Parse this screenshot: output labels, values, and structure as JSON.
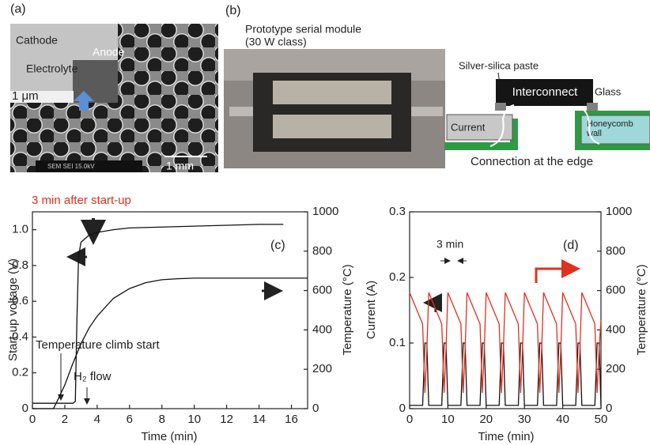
{
  "figure_a": {
    "label": "(a)",
    "cathode": "Cathode",
    "anode": "Anode",
    "electrolyte": "Electrolyte",
    "scale_inset": "1 μm",
    "scale_main": "1 mm",
    "sem_caption": "SEM SEI 15.0kV"
  },
  "figure_b": {
    "label": "(b)",
    "title_line1": "Prototype serial module",
    "title_line2": "(30 W class)",
    "paste": "Silver-silica paste",
    "interconnect": "Interconnect",
    "glass": "Glass",
    "current": "Current",
    "honeycomb_line1": "Honeycomb",
    "honeycomb_line2": "wall",
    "caption": "Connection at the edge"
  },
  "chart_data": [
    {
      "type": "line",
      "panel_label": "(c)",
      "xlabel": "Time (min)",
      "ylabel": "Start-up voltage (V)",
      "y2label": "Temperature (°C)",
      "annotations": [
        "3 min after start-up",
        "Temperature climb start",
        "H₂ flow"
      ],
      "xlim": [
        0,
        17
      ],
      "xticks": [
        0,
        2,
        4,
        6,
        8,
        10,
        12,
        14,
        16
      ],
      "ylim": [
        0,
        1.1
      ],
      "yticks": [
        0,
        0.2,
        0.4,
        0.6,
        0.8,
        {
          "value": 1,
          "label": "1.0"
        }
      ],
      "y2lim": [
        0,
        1000
      ],
      "y2ticks": [
        0,
        200,
        400,
        600,
        800,
        1000
      ],
      "series": [
        {
          "color": "#111111",
          "axis": "y",
          "x": [
            0,
            2.5,
            2.65,
            2.75,
            2.85,
            3,
            3.5,
            4,
            5,
            6,
            8,
            10,
            12,
            14,
            15.5
          ],
          "values": [
            0.03,
            0.03,
            0.04,
            0.5,
            0.85,
            0.93,
            0.97,
            0.985,
            1.0,
            1.01,
            1.015,
            1.02,
            1.025,
            1.03,
            1.03
          ]
        },
        {
          "color": "#111111",
          "axis": "y2",
          "x": [
            0,
            1.3,
            1.6,
            2,
            2.5,
            3,
            3.5,
            4,
            5,
            6,
            7,
            8,
            9,
            10,
            12,
            14,
            16,
            17
          ],
          "values": [
            0,
            0,
            50,
            120,
            230,
            330,
            410,
            470,
            560,
            610,
            640,
            655,
            660,
            663,
            663,
            663,
            663,
            663
          ]
        }
      ]
    },
    {
      "type": "line",
      "panel_label": "(d)",
      "xlabel": "Time (min)",
      "ylabel": "Current (A)",
      "y2label": "Temperature (°C)",
      "annotations": [
        "3 min"
      ],
      "xlim": [
        0,
        50
      ],
      "xticks": [
        0,
        10,
        20,
        30,
        40,
        50
      ],
      "ylim": [
        0,
        0.3
      ],
      "yticks": [
        0,
        0.1,
        0.2,
        0.3
      ],
      "y2lim": [
        0,
        1000
      ],
      "y2ticks": [
        0,
        200,
        400,
        600,
        800,
        1000
      ],
      "series": [
        {
          "color": "#111111",
          "axis": "y",
          "x": [
            0,
            3.4,
            4,
            4.5,
            5,
            8.4,
            9,
            9.5,
            10,
            13.4,
            14,
            14.5,
            15,
            18.4,
            19,
            19.5,
            20,
            23.4,
            24,
            24.5,
            25,
            28.4,
            29,
            29.5,
            30,
            33.4,
            34,
            34.5,
            35,
            38.4,
            39,
            39.5,
            40,
            43.4,
            44,
            44.5,
            45,
            48.4,
            49,
            49.5,
            50
          ],
          "values": [
            0.005,
            0.005,
            0.1,
            0.1,
            0.005,
            0.005,
            0.1,
            0.1,
            0.005,
            0.005,
            0.1,
            0.1,
            0.005,
            0.005,
            0.1,
            0.1,
            0.005,
            0.005,
            0.1,
            0.1,
            0.005,
            0.005,
            0.1,
            0.1,
            0.005,
            0.005,
            0.1,
            0.1,
            0.005,
            0.005,
            0.1,
            0.1,
            0.005,
            0.005,
            0.1,
            0.1,
            0.005,
            0.005,
            0.1,
            0.1,
            0.005
          ]
        },
        {
          "color": "#e0301e",
          "axis": "y2",
          "x": [
            0,
            3.4,
            4,
            4.5,
            5,
            8.4,
            9,
            9.5,
            10,
            13.4,
            14,
            14.5,
            15,
            18.4,
            19,
            19.5,
            20,
            23.4,
            24,
            24.5,
            25,
            28.4,
            29,
            29.5,
            30,
            33.4,
            34,
            34.5,
            35,
            38.4,
            39,
            39.5,
            40,
            43.4,
            44,
            44.5,
            45,
            48.4,
            49,
            49.5,
            50
          ],
          "values": [
            590,
            430,
            80,
            300,
            590,
            430,
            80,
            300,
            590,
            430,
            80,
            300,
            590,
            430,
            80,
            300,
            590,
            430,
            80,
            300,
            590,
            430,
            80,
            300,
            590,
            430,
            80,
            300,
            590,
            430,
            80,
            300,
            590,
            430,
            80,
            300,
            590,
            430,
            80,
            300,
            450
          ]
        }
      ]
    }
  ]
}
